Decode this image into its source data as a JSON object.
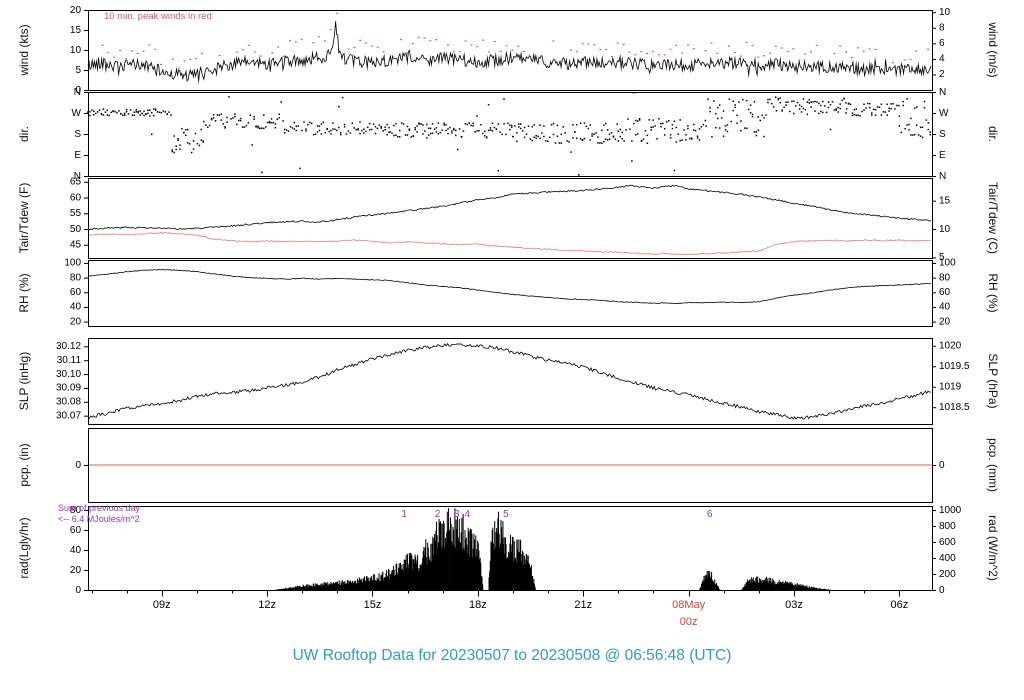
{
  "title": {
    "text": "UW Rooftop Data for 20230507  to  20230508 @ 06:56:48  (UTC)",
    "color": "#3399cc"
  },
  "colors": {
    "trace_black": "#000000",
    "peak_red": "#e8556e",
    "dew_red": "#e87878",
    "pcp_red": "#e85c5c",
    "date_red": "#cc4444",
    "purple": "#9933cc",
    "frame": "#000000",
    "background": "#ffffff"
  },
  "xaxis": {
    "start_hour": 6.9,
    "end_hour": 30.93,
    "major_ticks": [
      {
        "hour": 9,
        "label": "09z"
      },
      {
        "hour": 12,
        "label": "12z"
      },
      {
        "hour": 15,
        "label": "15z"
      },
      {
        "hour": 18,
        "label": "18z"
      },
      {
        "hour": 21,
        "label": "21z"
      },
      {
        "hour": 24,
        "label": "00z",
        "date_label": "08May",
        "red": true
      },
      {
        "hour": 27,
        "label": "03z"
      },
      {
        "hour": 30,
        "label": "06z"
      }
    ]
  },
  "chart_data": [
    {
      "kind": "wind",
      "type": "line",
      "left_title": "wind (kts)",
      "right_title": "wind (m/s)",
      "ylim": [
        0,
        20
      ],
      "left_ticks": [
        {
          "v": 0,
          "label": "0"
        },
        {
          "v": 5,
          "label": "5"
        },
        {
          "v": 10,
          "label": "10"
        },
        {
          "v": 15,
          "label": "15"
        },
        {
          "v": 20,
          "label": "20"
        }
      ],
      "right_ylim": [
        0,
        10.29
      ],
      "right_ticks": [
        {
          "v": 2,
          "label": "2"
        },
        {
          "v": 4,
          "label": "4"
        },
        {
          "v": 6,
          "label": "6"
        },
        {
          "v": 8,
          "label": "8"
        },
        {
          "v": 10,
          "label": "10"
        }
      ],
      "annotation": "10 min. peak winds in red",
      "noise": 1.5,
      "peaks": {
        "interval_hours": 0.1667,
        "offset_min": 1.2,
        "offset_max": 5.5
      },
      "series": {
        "x": [
          6.9,
          7.3,
          7.8,
          8.2,
          8.6,
          9.0,
          9.4,
          9.8,
          10.2,
          10.6,
          11.0,
          11.5,
          12.0,
          12.5,
          13.0,
          13.5,
          13.8,
          13.95,
          14.05,
          14.2,
          14.5,
          15.0,
          15.5,
          16.0,
          16.5,
          17.0,
          17.5,
          18.0,
          18.5,
          19.0,
          19.5,
          20.0,
          20.5,
          21.0,
          21.5,
          22.0,
          22.5,
          23.0,
          23.5,
          24.0,
          24.5,
          25.0,
          25.5,
          26.0,
          26.5,
          27.0,
          27.5,
          28.0,
          28.5,
          29.0,
          29.5,
          30.0,
          30.5,
          30.93
        ],
        "y": [
          6,
          7,
          5.5,
          6.5,
          6,
          4.5,
          4,
          3.5,
          4.5,
          5.5,
          6.5,
          7,
          6.5,
          7,
          7.5,
          8,
          9,
          16.5,
          10,
          8,
          7,
          7,
          7.5,
          8,
          7.5,
          8,
          7.5,
          7,
          7.5,
          8,
          7.5,
          7,
          6.5,
          7,
          6.5,
          7,
          6.5,
          6,
          6.5,
          6,
          7,
          6.5,
          7,
          6,
          6.5,
          5.5,
          6,
          5.5,
          6,
          5,
          5.5,
          5,
          5.5,
          4.5
        ]
      }
    },
    {
      "kind": "dir",
      "type": "scatter",
      "left_title": "dir.",
      "right_title": "dir.",
      "ylim": [
        0,
        360
      ],
      "left_ticks": [
        {
          "v": 360,
          "label": "N"
        },
        {
          "v": 270,
          "label": "W"
        },
        {
          "v": 180,
          "label": "S"
        },
        {
          "v": 90,
          "label": "E"
        },
        {
          "v": 0,
          "label": "N"
        }
      ],
      "segments": [
        [
          6.9,
          9.3,
          272,
          15
        ],
        [
          9.3,
          10.2,
          145,
          55
        ],
        [
          10.2,
          12.5,
          235,
          32
        ],
        [
          12.5,
          15.5,
          205,
          28
        ],
        [
          15.5,
          19,
          195,
          32
        ],
        [
          19,
          22,
          185,
          45
        ],
        [
          22,
          24.5,
          195,
          55
        ],
        [
          24.5,
          26.5,
          245,
          85
        ],
        [
          26.5,
          28.5,
          300,
          38
        ],
        [
          28.5,
          30,
          285,
          28
        ],
        [
          30,
          30.93,
          250,
          95
        ]
      ]
    },
    {
      "kind": "temp",
      "type": "line",
      "left_title": "Tair/Tdew (F)",
      "right_title": "Tair/Tdew (C)",
      "ylim": [
        40.8,
        66.2
      ],
      "left_ticks": [
        {
          "v": 45,
          "label": "45"
        },
        {
          "v": 50,
          "label": "50"
        },
        {
          "v": 55,
          "label": "55"
        },
        {
          "v": 60,
          "label": "60"
        },
        {
          "v": 65,
          "label": "65"
        }
      ],
      "right_ylim": [
        4.89,
        19.0
      ],
      "right_ticks": [
        {
          "v": 5,
          "label": "5"
        },
        {
          "v": 10,
          "label": "10"
        },
        {
          "v": 15,
          "label": "15"
        }
      ],
      "tair_noise": 0.25,
      "tdew_noise": 0.18,
      "series": {
        "x": [
          6.9,
          7.5,
          8,
          8.5,
          9,
          9.5,
          10,
          10.5,
          11,
          11.5,
          12,
          12.5,
          13,
          13.5,
          14,
          14.5,
          15,
          15.5,
          16,
          16.5,
          17,
          17.5,
          18,
          18.5,
          19,
          19.5,
          20,
          20.5,
          21,
          21.5,
          22,
          22.3,
          22.6,
          23,
          23.3,
          23.6,
          24,
          24.5,
          25,
          25.5,
          26,
          26.5,
          27,
          27.5,
          28,
          28.5,
          29,
          29.5,
          30,
          30.5,
          30.93
        ],
        "tair": [
          50,
          50.3,
          50.5,
          50.4,
          50.2,
          50,
          50.2,
          50.5,
          51,
          51.5,
          52,
          52.3,
          52.5,
          52.2,
          53,
          53.8,
          54.5,
          55,
          55.8,
          56.5,
          57.2,
          58.2,
          59.3,
          60,
          61,
          61.4,
          61.8,
          62,
          62.3,
          62.8,
          63.3,
          63.8,
          63.4,
          63,
          63.5,
          63.8,
          62.8,
          62.2,
          61.6,
          61,
          60.2,
          59.2,
          58.2,
          57.2,
          56.2,
          55.2,
          54.6,
          54,
          53.5,
          53,
          52.6
        ],
        "tdew": [
          48.2,
          48.3,
          48.2,
          48.5,
          48.8,
          48.5,
          48,
          46.8,
          46.2,
          46,
          46.2,
          46,
          46.1,
          46,
          46.2,
          46.5,
          46,
          45.6,
          45.9,
          45.6,
          45.3,
          45,
          45.2,
          44.6,
          44.2,
          43.8,
          43.6,
          43.2,
          43,
          42.8,
          42.6,
          42.4,
          42.2,
          42,
          42.3,
          42,
          41.9,
          42.2,
          42.4,
          42.8,
          43,
          45.2,
          46,
          46.2,
          46.4,
          46.2,
          46.5,
          46.3,
          46.5,
          46.2,
          46.4
        ]
      }
    },
    {
      "kind": "rh",
      "type": "line",
      "left_title": "RH (%)",
      "right_title": "RH (%)",
      "ylim": [
        14,
        104
      ],
      "left_ticks": [
        {
          "v": 20,
          "label": "20"
        },
        {
          "v": 40,
          "label": "40"
        },
        {
          "v": 60,
          "label": "60"
        },
        {
          "v": 80,
          "label": "80"
        },
        {
          "v": 100,
          "label": "100"
        }
      ],
      "right_ticks": [
        {
          "v": 20,
          "label": "20"
        },
        {
          "v": 40,
          "label": "40"
        },
        {
          "v": 60,
          "label": "60"
        },
        {
          "v": 80,
          "label": "80"
        },
        {
          "v": 100,
          "label": "100"
        }
      ],
      "noise": 0.5,
      "series": {
        "x": [
          6.9,
          7.5,
          8,
          8.5,
          9,
          9.5,
          10,
          10.5,
          11,
          11.5,
          12,
          12.5,
          13,
          13.5,
          14,
          14.5,
          15,
          15.5,
          16,
          16.5,
          17,
          17.5,
          18,
          18.5,
          19,
          19.5,
          20,
          20.5,
          21,
          21.5,
          22,
          22.3,
          22.6,
          23,
          23.3,
          23.6,
          24,
          24.5,
          25,
          25.5,
          26,
          26.5,
          27,
          27.5,
          28,
          28.5,
          29,
          29.5,
          30,
          30.5,
          30.93
        ],
        "y": [
          82,
          85,
          88,
          90,
          91,
          90,
          88,
          85,
          82,
          80,
          79,
          78,
          79,
          78,
          79,
          78,
          77,
          76,
          73,
          70,
          68,
          66,
          63,
          60,
          57,
          55,
          53,
          51,
          50,
          49,
          47,
          46.5,
          46,
          45,
          45.5,
          45,
          45.5,
          46,
          46.5,
          46,
          47,
          52,
          56,
          59,
          63,
          66,
          68,
          69,
          70,
          71,
          72
        ]
      }
    },
    {
      "kind": "slp",
      "type": "line",
      "left_title": "SLP (inHg)",
      "right_title": "SLP (hPa)",
      "ylim": [
        30.064,
        30.126
      ],
      "left_ticks": [
        {
          "v": 30.07,
          "label": "30.07"
        },
        {
          "v": 30.08,
          "label": "30.08"
        },
        {
          "v": 30.09,
          "label": "30.09"
        },
        {
          "v": 30.1,
          "label": "30.10"
        },
        {
          "v": 30.11,
          "label": "30.11"
        },
        {
          "v": 30.12,
          "label": "30.12"
        }
      ],
      "right_ylim": [
        1018.09,
        1020.19
      ],
      "right_ticks": [
        {
          "v": 1018.5,
          "label": "1018.5"
        },
        {
          "v": 1019,
          "label": "1019"
        },
        {
          "v": 1019.5,
          "label": "1019.5"
        },
        {
          "v": 1020,
          "label": "1020"
        }
      ],
      "noise": 0.0012,
      "series": {
        "x": [
          6.9,
          7.5,
          8,
          8.5,
          9,
          9.5,
          10,
          10.5,
          11,
          11.5,
          12,
          12.5,
          13,
          13.5,
          14,
          14.5,
          15,
          15.5,
          16,
          16.5,
          17,
          17.5,
          18,
          18.5,
          19,
          19.5,
          20,
          20.5,
          21,
          21.5,
          22,
          22.3,
          22.6,
          23,
          23.3,
          23.6,
          24,
          24.5,
          25,
          25.5,
          26,
          26.5,
          27,
          27.5,
          28,
          28.5,
          29,
          29.5,
          30,
          30.5,
          30.93
        ],
        "y": [
          30.069,
          30.072,
          30.075,
          30.077,
          30.079,
          30.081,
          30.084,
          30.086,
          30.087,
          30.088,
          30.09,
          30.092,
          30.094,
          30.098,
          30.103,
          30.107,
          30.111,
          30.114,
          30.117,
          30.119,
          30.121,
          30.121,
          30.12,
          30.119,
          30.116,
          30.113,
          30.11,
          30.108,
          30.105,
          30.101,
          30.097,
          30.095,
          30.093,
          30.09,
          30.088,
          30.087,
          30.085,
          30.082,
          30.079,
          30.076,
          30.073,
          30.071,
          30.068,
          30.069,
          30.071,
          30.074,
          30.077,
          30.079,
          30.082,
          30.085,
          30.088
        ]
      }
    },
    {
      "kind": "pcp",
      "type": "line",
      "left_title": "pcp. (in)",
      "right_title": "pcp. (mm)",
      "ylim": [
        -1,
        1
      ],
      "left_ticks": [
        {
          "v": 0,
          "label": "0"
        }
      ],
      "right_ticks": [
        {
          "v": 0,
          "label": "0"
        }
      ],
      "value": 0
    },
    {
      "kind": "rad",
      "type": "area",
      "left_title": "rad(Lgly/hr)",
      "right_title": "rad (W/m^2)",
      "ylim": [
        0,
        84
      ],
      "left_ticks": [
        {
          "v": 0,
          "label": "0"
        },
        {
          "v": 20,
          "label": "20"
        },
        {
          "v": 40,
          "label": "40"
        },
        {
          "v": 60,
          "label": "60"
        },
        {
          "v": 80,
          "label": "80"
        }
      ],
      "right_ylim": [
        0,
        1050
      ],
      "right_ticks": [
        {
          "v": 0,
          "label": "0"
        },
        {
          "v": 200,
          "label": "200"
        },
        {
          "v": 400,
          "label": "400"
        },
        {
          "v": 600,
          "label": "600"
        },
        {
          "v": 800,
          "label": "800"
        },
        {
          "v": 1000,
          "label": "1000"
        }
      ],
      "annotations": [
        "Sum of previous day",
        "<-- 6.4 MJoules/m^2"
      ],
      "hour_marks": [
        {
          "hour": 15.9,
          "label": "1"
        },
        {
          "hour": 16.85,
          "label": "2"
        },
        {
          "hour": 17.4,
          "label": "3"
        },
        {
          "hour": 17.7,
          "label": "4"
        },
        {
          "hour": 18.8,
          "label": "5"
        },
        {
          "hour": 24.6,
          "label": "6"
        }
      ],
      "envelope": {
        "x": [
          12.2,
          12.5,
          13,
          13.5,
          14,
          14.5,
          15,
          15.4,
          15.8,
          16.1,
          16.3,
          16.5,
          16.7,
          16.9,
          17.1,
          17.3,
          17.5,
          17.7,
          17.9,
          18.05,
          18.15,
          18.3,
          18.4,
          18.6,
          18.8,
          19,
          19.2,
          19.4,
          19.55,
          19.65,
          24.3,
          24.45,
          24.6,
          24.75,
          24.9,
          25.5,
          25.7,
          25.9,
          26.2,
          26.5,
          26.9,
          27.3,
          27.7,
          28.1
        ],
        "y": [
          0,
          2,
          5,
          7,
          9,
          12,
          15,
          20,
          28,
          40,
          35,
          48,
          55,
          72,
          80,
          82,
          78,
          70,
          55,
          45,
          0,
          0,
          70,
          78,
          60,
          55,
          50,
          45,
          20,
          0,
          0,
          15,
          25,
          10,
          0,
          0,
          12,
          14,
          13,
          10,
          8,
          5,
          2,
          0
        ]
      }
    }
  ]
}
